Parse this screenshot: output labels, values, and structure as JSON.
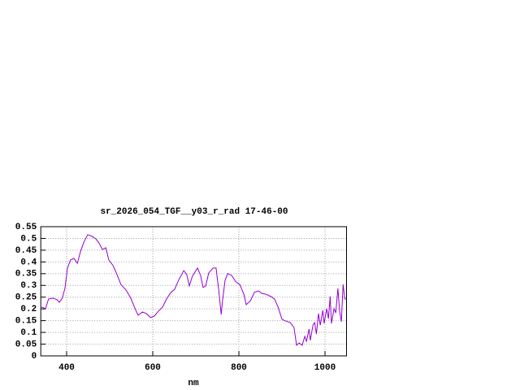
{
  "chart_data": {
    "type": "line",
    "title": "sr_2026_054_TGF__y03_r_rad 17-46-00",
    "xlabel": "nm",
    "x": [
      341.5,
      351,
      358,
      368,
      378,
      383,
      390,
      396,
      402,
      409,
      417,
      425,
      432,
      440,
      449,
      459,
      468,
      476,
      483,
      491,
      498,
      508,
      517,
      526,
      538,
      549,
      559,
      566,
      576,
      585,
      595,
      604,
      613,
      623,
      632,
      642,
      651,
      660,
      672,
      679,
      685,
      692,
      704,
      711,
      717,
      723,
      730,
      740,
      747,
      753,
      759,
      762,
      768,
      774,
      783,
      793,
      802,
      812,
      817,
      827,
      836,
      846,
      853,
      862,
      874,
      883,
      891,
      900,
      908,
      919,
      928,
      934,
      940,
      947,
      953,
      957,
      963,
      966,
      972,
      976,
      980,
      985,
      989,
      995,
      998,
      1004,
      1008,
      1012,
      1015,
      1021,
      1025,
      1030,
      1034,
      1038,
      1042,
      1046,
      1050
    ],
    "series": [
      {
        "name": "sr_2026_054_TGF__y03_r_rad",
        "color": "#9400d3",
        "values": [
          0.208,
          0.201,
          0.242,
          0.246,
          0.239,
          0.228,
          0.246,
          0.287,
          0.374,
          0.408,
          0.415,
          0.394,
          0.443,
          0.484,
          0.516,
          0.509,
          0.498,
          0.478,
          0.453,
          0.46,
          0.408,
          0.384,
          0.346,
          0.304,
          0.28,
          0.246,
          0.201,
          0.173,
          0.187,
          0.18,
          0.163,
          0.17,
          0.19,
          0.208,
          0.242,
          0.27,
          0.284,
          0.322,
          0.363,
          0.346,
          0.298,
          0.339,
          0.374,
          0.343,
          0.291,
          0.298,
          0.353,
          0.374,
          0.374,
          0.284,
          0.176,
          0.235,
          0.322,
          0.35,
          0.343,
          0.315,
          0.304,
          0.26,
          0.218,
          0.235,
          0.27,
          0.277,
          0.266,
          0.263,
          0.253,
          0.242,
          0.208,
          0.156,
          0.149,
          0.142,
          0.121,
          0.045,
          0.055,
          0.045,
          0.083,
          0.062,
          0.114,
          0.066,
          0.131,
          0.142,
          0.093,
          0.18,
          0.131,
          0.194,
          0.138,
          0.201,
          0.159,
          0.253,
          0.138,
          0.201,
          0.183,
          0.287,
          0.19,
          0.145,
          0.304,
          0.242,
          0.242
        ]
      }
    ],
    "xlim": [
      340,
      1050
    ],
    "xticks": [
      400,
      600,
      800,
      1000
    ],
    "ylim": [
      0,
      0.55
    ],
    "yticks": [
      0,
      0.05,
      0.1,
      0.15,
      0.2,
      0.25,
      0.3,
      0.35,
      0.4,
      0.45,
      0.5,
      0.55
    ],
    "grid": true
  }
}
